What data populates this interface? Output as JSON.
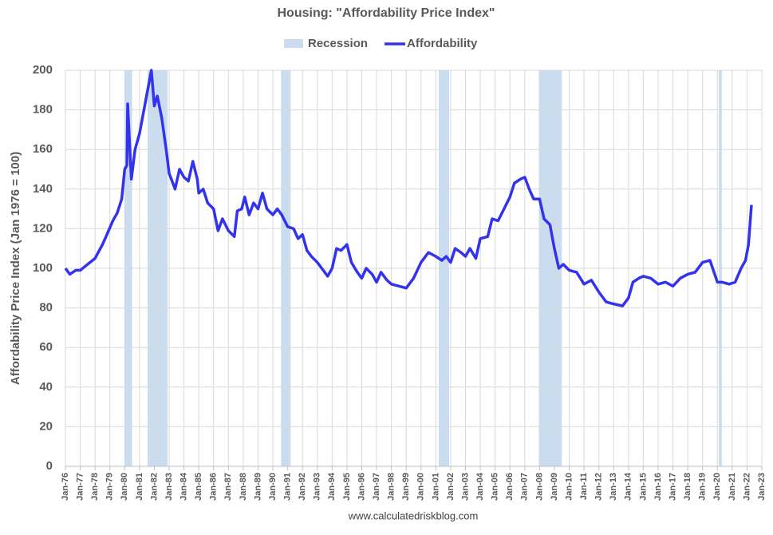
{
  "chart_data": {
    "type": "line",
    "title": "Housing: \"Affordability Price Index\"",
    "y_label": "Affordability Price Index (Jan 1976 = 100)",
    "source": "www.calculatedriskblog.com",
    "recessions": {
      "name": "Recession",
      "color": "#c9dcf0",
      "periods": [
        [
          1980.0,
          1980.5
        ],
        [
          1981.55,
          1982.9
        ],
        [
          1990.55,
          1991.2
        ],
        [
          2001.2,
          2001.9
        ],
        [
          2007.95,
          2009.5
        ],
        [
          2020.1,
          2020.3
        ]
      ]
    },
    "x": [
      1976.0,
      1976.3,
      1976.7,
      1977.0,
      1977.5,
      1978.0,
      1978.5,
      1978.8,
      1979.2,
      1979.5,
      1979.8,
      1980.0,
      1980.15,
      1980.2,
      1980.45,
      1980.7,
      1981.0,
      1981.3,
      1981.6,
      1981.8,
      1982.0,
      1982.2,
      1982.5,
      1982.8,
      1983.0,
      1983.4,
      1983.7,
      1984.0,
      1984.3,
      1984.6,
      1984.9,
      1985.0,
      1985.3,
      1985.6,
      1986.0,
      1986.3,
      1986.6,
      1987.0,
      1987.4,
      1987.6,
      1987.9,
      1988.1,
      1988.4,
      1988.7,
      1989.0,
      1989.3,
      1989.6,
      1990.0,
      1990.3,
      1990.6,
      1991.0,
      1991.4,
      1991.7,
      1992.0,
      1992.3,
      1992.6,
      1993.0,
      1993.3,
      1993.7,
      1994.0,
      1994.3,
      1994.6,
      1995.0,
      1995.3,
      1995.7,
      1996.0,
      1996.3,
      1996.7,
      1997.0,
      1997.3,
      1997.7,
      1998.0,
      1998.5,
      1999.0,
      1999.5,
      2000.0,
      2000.5,
      2001.0,
      2001.4,
      2001.7,
      2002.0,
      2002.3,
      2002.7,
      2003.0,
      2003.3,
      2003.7,
      2004.0,
      2004.5,
      2004.8,
      2005.2,
      2005.6,
      2006.0,
      2006.3,
      2006.7,
      2007.0,
      2007.3,
      2007.6,
      2008.0,
      2008.3,
      2008.7,
      2009.0,
      2009.3,
      2009.6,
      2010.0,
      2010.5,
      2011.0,
      2011.5,
      2012.0,
      2012.5,
      2013.0,
      2013.6,
      2014.0,
      2014.3,
      2014.7,
      2015.0,
      2015.5,
      2016.0,
      2016.5,
      2017.0,
      2017.5,
      2018.0,
      2018.5,
      2019.0,
      2019.5,
      2020.0,
      2020.3,
      2020.8,
      2021.2,
      2021.6,
      2021.9,
      2022.1,
      2022.3
    ],
    "series": [
      {
        "name": "Affordability",
        "color": "#3333ee",
        "values": [
          100,
          97,
          99,
          99,
          102,
          105,
          112,
          117,
          124,
          128,
          135,
          150,
          152,
          183,
          145,
          160,
          168,
          180,
          192,
          200,
          182,
          187,
          176,
          160,
          148,
          140,
          150,
          146,
          144,
          154,
          145,
          138,
          140,
          133,
          130,
          119,
          125,
          119,
          116,
          129,
          130,
          136,
          127,
          133,
          130,
          138,
          130,
          127,
          130,
          127,
          121,
          120,
          115,
          117,
          109,
          106,
          103,
          100,
          96,
          100,
          110,
          109,
          112,
          103,
          98,
          95,
          100,
          97,
          93,
          98,
          94,
          92,
          91,
          90,
          95,
          103,
          108,
          106,
          104,
          106,
          103,
          110,
          108,
          106,
          110,
          105,
          115,
          116,
          125,
          124,
          130,
          136,
          143,
          145,
          146,
          140,
          135,
          135,
          125,
          122,
          110,
          100,
          102,
          99,
          98,
          92,
          94,
          88,
          83,
          82,
          81,
          85,
          93,
          95,
          96,
          95,
          92,
          93,
          91,
          95,
          97,
          98,
          103,
          104,
          93,
          93,
          92,
          93,
          100,
          104,
          112,
          132
        ]
      }
    ],
    "xlim": [
      1976,
      2023
    ],
    "xticks": [
      {
        "value": 1976,
        "label": "Jan-76"
      },
      {
        "value": 1977,
        "label": "Jan-77"
      },
      {
        "value": 1978,
        "label": "Jan-78"
      },
      {
        "value": 1979,
        "label": "Jan-79"
      },
      {
        "value": 1980,
        "label": "Jan-80"
      },
      {
        "value": 1981,
        "label": "Jan-81"
      },
      {
        "value": 1982,
        "label": "Jan-82"
      },
      {
        "value": 1983,
        "label": "Jan-83"
      },
      {
        "value": 1984,
        "label": "Jan-84"
      },
      {
        "value": 1985,
        "label": "Jan-85"
      },
      {
        "value": 1986,
        "label": "Jan-86"
      },
      {
        "value": 1987,
        "label": "Jan-87"
      },
      {
        "value": 1988,
        "label": "Jan-88"
      },
      {
        "value": 1989,
        "label": "Jan-89"
      },
      {
        "value": 1990,
        "label": "Jan-90"
      },
      {
        "value": 1991,
        "label": "Jan-91"
      },
      {
        "value": 1992,
        "label": "Jan-92"
      },
      {
        "value": 1993,
        "label": "Jan-93"
      },
      {
        "value": 1994,
        "label": "Jan-94"
      },
      {
        "value": 1995,
        "label": "Jan-95"
      },
      {
        "value": 1996,
        "label": "Jan-96"
      },
      {
        "value": 1997,
        "label": "Jan-97"
      },
      {
        "value": 1998,
        "label": "Jan-98"
      },
      {
        "value": 1999,
        "label": "Jan-99"
      },
      {
        "value": 2000,
        "label": "Jan-00"
      },
      {
        "value": 2001,
        "label": "Jan-01"
      },
      {
        "value": 2002,
        "label": "Jan-02"
      },
      {
        "value": 2003,
        "label": "Jan-03"
      },
      {
        "value": 2004,
        "label": "Jan-04"
      },
      {
        "value": 2005,
        "label": "Jan-05"
      },
      {
        "value": 2006,
        "label": "Jan-06"
      },
      {
        "value": 2007,
        "label": "Jan-07"
      },
      {
        "value": 2008,
        "label": "Jan-08"
      },
      {
        "value": 2009,
        "label": "Jan-09"
      },
      {
        "value": 2010,
        "label": "Jan-10"
      },
      {
        "value": 2011,
        "label": "Jan-11"
      },
      {
        "value": 2012,
        "label": "Jan-12"
      },
      {
        "value": 2013,
        "label": "Jan-13"
      },
      {
        "value": 2014,
        "label": "Jan-14"
      },
      {
        "value": 2015,
        "label": "Jan-15"
      },
      {
        "value": 2016,
        "label": "Jan-16"
      },
      {
        "value": 2017,
        "label": "Jan-17"
      },
      {
        "value": 2018,
        "label": "Jan-18"
      },
      {
        "value": 2019,
        "label": "Jan-19"
      },
      {
        "value": 2020,
        "label": "Jan-20"
      },
      {
        "value": 2021,
        "label": "Jan-21"
      },
      {
        "value": 2022,
        "label": "Jan-22"
      },
      {
        "value": 2023,
        "label": "Jan-23"
      }
    ],
    "ylim": [
      0,
      200
    ],
    "yticks": [
      0,
      20,
      40,
      60,
      80,
      100,
      120,
      140,
      160,
      180,
      200
    ],
    "grid": true
  }
}
